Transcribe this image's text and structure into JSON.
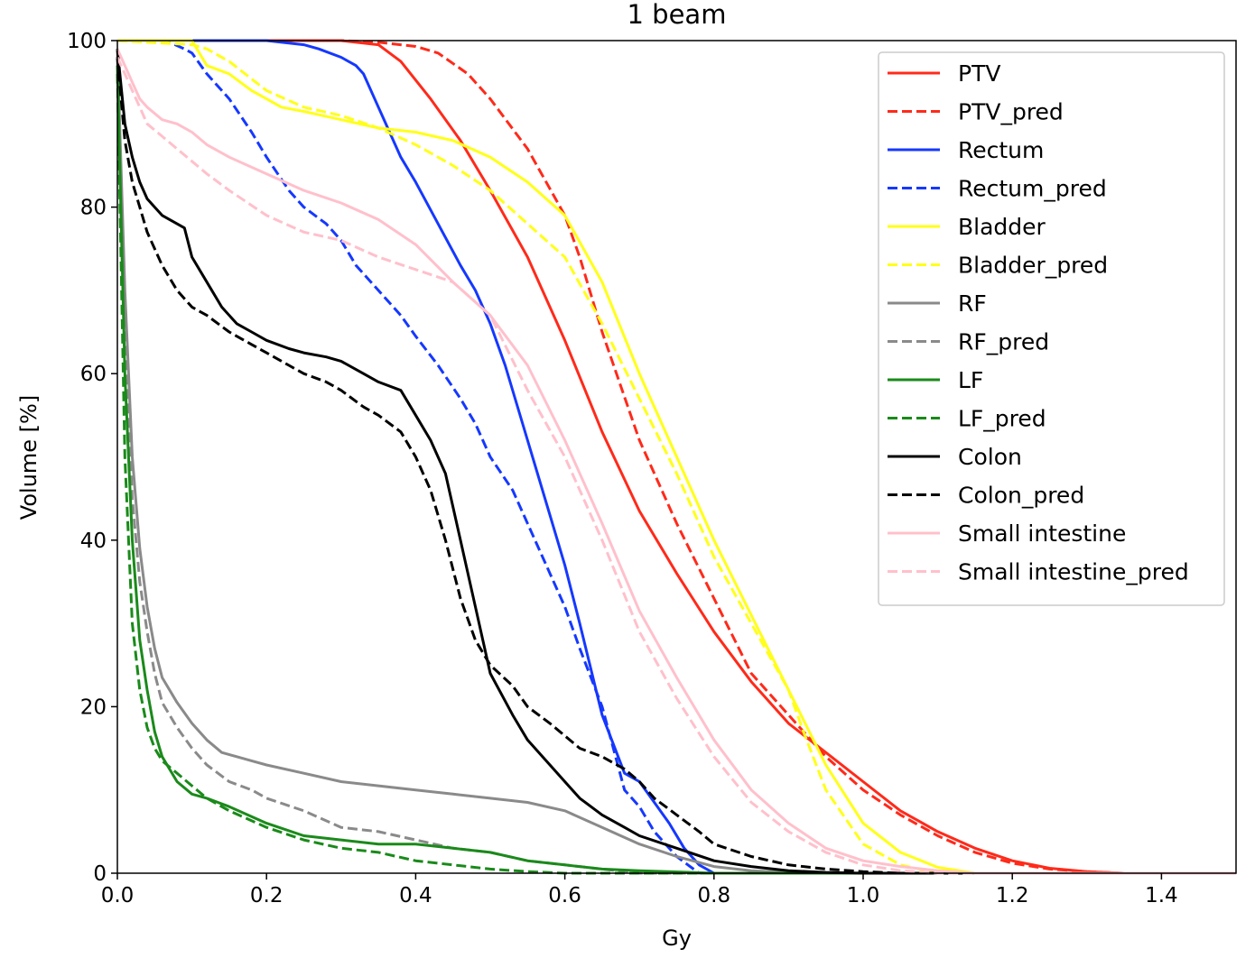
{
  "chart_data": {
    "type": "line",
    "title": "1 beam",
    "xlabel": "Gy",
    "ylabel": "Volume [%]",
    "xlim": [
      0.0,
      1.5
    ],
    "ylim": [
      0,
      100
    ],
    "xticks": [
      0.0,
      0.2,
      0.4,
      0.6,
      0.8,
      1.0,
      1.2,
      1.4
    ],
    "xtick_labels": [
      "0.0",
      "0.2",
      "0.4",
      "0.6",
      "0.8",
      "1.0",
      "1.2",
      "1.4"
    ],
    "yticks": [
      0,
      20,
      40,
      60,
      80,
      100
    ],
    "ytick_labels": [
      "0",
      "20",
      "40",
      "60",
      "80",
      "100"
    ],
    "grid": false,
    "legend_position": "top-right",
    "series": [
      {
        "name": "PTV",
        "color": "#ff2a1a",
        "style": "solid",
        "x": [
          0,
          0.2,
          0.3,
          0.35,
          0.38,
          0.42,
          0.46,
          0.5,
          0.55,
          0.6,
          0.65,
          0.7,
          0.75,
          0.8,
          0.85,
          0.9,
          0.95,
          1.0,
          1.05,
          1.1,
          1.15,
          1.2,
          1.25,
          1.3,
          1.35,
          1.5
        ],
        "y": [
          100,
          100,
          100,
          99.5,
          97.5,
          93,
          88,
          82,
          74,
          64,
          53,
          43.5,
          36,
          29,
          23,
          18,
          14.5,
          11,
          7.5,
          5,
          3,
          1.5,
          0.6,
          0.2,
          0,
          0
        ]
      },
      {
        "name": "PTV_pred",
        "color": "#ff2a1a",
        "style": "dashed",
        "x": [
          0,
          0.3,
          0.35,
          0.4,
          0.43,
          0.47,
          0.5,
          0.55,
          0.6,
          0.62,
          0.65,
          0.7,
          0.75,
          0.8,
          0.85,
          0.9,
          0.95,
          1.0,
          1.05,
          1.1,
          1.15,
          1.2,
          1.25,
          1.3,
          1.35,
          1.5
        ],
        "y": [
          100,
          100,
          99.8,
          99.3,
          98.5,
          96,
          93,
          87,
          79,
          74,
          65,
          52,
          42,
          33,
          24,
          19,
          14,
          10,
          7,
          4.5,
          2.5,
          1.2,
          0.5,
          0.2,
          0,
          0
        ]
      },
      {
        "name": "Rectum",
        "color": "#1538ff",
        "style": "solid",
        "x": [
          0,
          0.2,
          0.23,
          0.25,
          0.27,
          0.3,
          0.32,
          0.33,
          0.35,
          0.38,
          0.4,
          0.43,
          0.46,
          0.48,
          0.5,
          0.52,
          0.55,
          0.58,
          0.6,
          0.62,
          0.65,
          0.68,
          0.7,
          0.72,
          0.74,
          0.76,
          0.78,
          0.8,
          1.5
        ],
        "y": [
          100,
          100,
          99.7,
          99.5,
          99,
          98,
          97,
          96,
          92,
          86,
          83,
          78,
          73,
          70,
          66,
          61,
          52,
          43,
          37,
          30,
          19,
          12,
          11,
          8.5,
          6,
          3,
          1,
          0,
          0
        ]
      },
      {
        "name": "Rectum_pred",
        "color": "#1538ff",
        "style": "dashed",
        "x": [
          0,
          0.07,
          0.09,
          0.1,
          0.12,
          0.15,
          0.18,
          0.2,
          0.23,
          0.25,
          0.28,
          0.3,
          0.32,
          0.35,
          0.38,
          0.4,
          0.43,
          0.46,
          0.48,
          0.5,
          0.53,
          0.55,
          0.58,
          0.6,
          0.62,
          0.65,
          0.68,
          0.7,
          0.72,
          0.75,
          0.78,
          1.5
        ],
        "y": [
          100,
          99.8,
          99,
          98.5,
          96,
          93,
          89,
          86,
          82,
          80,
          78,
          76,
          73,
          70,
          67,
          64.5,
          61,
          57,
          54,
          50,
          46,
          42,
          36,
          32,
          27,
          20,
          10,
          8,
          5,
          2,
          0,
          0
        ]
      },
      {
        "name": "Bladder",
        "color": "#ffff1a",
        "style": "solid",
        "x": [
          0,
          0.1,
          0.12,
          0.15,
          0.18,
          0.2,
          0.22,
          0.25,
          0.3,
          0.35,
          0.4,
          0.45,
          0.5,
          0.55,
          0.6,
          0.65,
          0.7,
          0.75,
          0.8,
          0.85,
          0.9,
          0.95,
          1.0,
          1.05,
          1.1,
          1.15,
          1.5
        ],
        "y": [
          100,
          100,
          97,
          96,
          94,
          93,
          92,
          91.5,
          90.5,
          89.5,
          89,
          88,
          86,
          83,
          79,
          71,
          60,
          50,
          40,
          31,
          22,
          13,
          6,
          2.5,
          0.7,
          0,
          0
        ]
      },
      {
        "name": "Bladder_pred",
        "color": "#ffff1a",
        "style": "dashed",
        "x": [
          0,
          0.1,
          0.12,
          0.15,
          0.2,
          0.25,
          0.3,
          0.35,
          0.4,
          0.45,
          0.5,
          0.55,
          0.6,
          0.65,
          0.7,
          0.75,
          0.8,
          0.85,
          0.9,
          0.92,
          0.95,
          1.0,
          1.05,
          1.1,
          1.5
        ],
        "y": [
          100,
          99.5,
          99,
          97.5,
          94,
          92,
          91,
          89.5,
          87.5,
          85,
          82,
          78,
          74,
          66,
          57,
          48,
          38,
          30,
          22,
          17,
          10,
          3.5,
          1,
          0,
          0
        ]
      },
      {
        "name": "RF",
        "color": "#8a8a8a",
        "style": "solid",
        "x": [
          0,
          0.01,
          0.02,
          0.03,
          0.04,
          0.05,
          0.06,
          0.08,
          0.1,
          0.12,
          0.14,
          0.16,
          0.18,
          0.2,
          0.25,
          0.3,
          0.35,
          0.4,
          0.45,
          0.5,
          0.55,
          0.6,
          0.65,
          0.7,
          0.75,
          0.8,
          0.85,
          0.9,
          0.95,
          1.0,
          1.5
        ],
        "y": [
          99,
          70,
          50,
          39,
          32,
          27,
          23.5,
          20.5,
          18,
          16,
          14.5,
          14,
          13.5,
          13,
          12,
          11,
          10.5,
          10,
          9.5,
          9,
          8.5,
          7.5,
          5.5,
          3.5,
          2,
          0.8,
          0.3,
          0.1,
          0,
          0,
          0
        ]
      },
      {
        "name": "RF_pred",
        "color": "#8a8a8a",
        "style": "dashed",
        "x": [
          0,
          0.01,
          0.02,
          0.03,
          0.04,
          0.05,
          0.06,
          0.08,
          0.1,
          0.12,
          0.15,
          0.18,
          0.2,
          0.25,
          0.3,
          0.35,
          0.4,
          0.45,
          0.5,
          0.55,
          0.6,
          0.65,
          0.7,
          0.8,
          1.5
        ],
        "y": [
          98,
          65,
          45,
          35,
          29,
          24,
          20.5,
          17.5,
          15,
          13,
          11,
          10,
          9,
          7.5,
          5.5,
          5,
          4,
          3,
          2.5,
          1.5,
          1,
          0.5,
          0,
          0,
          0
        ]
      },
      {
        "name": "LF",
        "color": "#1a8a1a",
        "style": "solid",
        "x": [
          0,
          0.01,
          0.02,
          0.03,
          0.04,
          0.05,
          0.06,
          0.08,
          0.1,
          0.12,
          0.15,
          0.2,
          0.25,
          0.3,
          0.35,
          0.4,
          0.45,
          0.5,
          0.55,
          0.6,
          0.65,
          0.7,
          0.8,
          1.5
        ],
        "y": [
          97,
          60,
          40,
          28,
          22,
          17,
          14,
          11,
          9.5,
          9,
          8,
          6,
          4.5,
          4,
          3.5,
          3.5,
          3,
          2.5,
          1.5,
          1,
          0.5,
          0.3,
          0,
          0
        ]
      },
      {
        "name": "LF_pred",
        "color": "#1a8a1a",
        "style": "dashed",
        "x": [
          0,
          0.01,
          0.02,
          0.03,
          0.04,
          0.05,
          0.06,
          0.08,
          0.1,
          0.12,
          0.15,
          0.2,
          0.25,
          0.3,
          0.35,
          0.4,
          0.45,
          0.5,
          0.55,
          0.6,
          1.5
        ],
        "y": [
          96,
          50,
          30,
          22,
          17.5,
          15,
          13.5,
          12,
          10.5,
          9,
          7.5,
          5.5,
          4,
          3,
          2.5,
          1.5,
          1,
          0.5,
          0.2,
          0,
          0
        ]
      },
      {
        "name": "Colon",
        "color": "#000000",
        "style": "solid",
        "x": [
          0,
          0.01,
          0.02,
          0.03,
          0.04,
          0.05,
          0.06,
          0.08,
          0.09,
          0.1,
          0.12,
          0.14,
          0.16,
          0.18,
          0.2,
          0.23,
          0.25,
          0.28,
          0.3,
          0.33,
          0.35,
          0.38,
          0.4,
          0.42,
          0.44,
          0.46,
          0.48,
          0.5,
          0.53,
          0.55,
          0.58,
          0.6,
          0.62,
          0.65,
          0.68,
          0.7,
          0.75,
          0.8,
          0.85,
          0.9,
          0.95,
          1.0,
          1.5
        ],
        "y": [
          99,
          90,
          86,
          83,
          81,
          80,
          79,
          78,
          77.5,
          74,
          71,
          68,
          66,
          65,
          64,
          63,
          62.5,
          62,
          61.5,
          60,
          59,
          58,
          55,
          52,
          48,
          40,
          32,
          24,
          19,
          16,
          13,
          11,
          9,
          7,
          5.5,
          4.5,
          3,
          1.5,
          0.8,
          0.3,
          0.1,
          0,
          0
        ]
      },
      {
        "name": "Colon_pred",
        "color": "#000000",
        "style": "dashed",
        "x": [
          0,
          0.01,
          0.02,
          0.03,
          0.04,
          0.05,
          0.06,
          0.08,
          0.1,
          0.12,
          0.15,
          0.18,
          0.2,
          0.23,
          0.25,
          0.28,
          0.3,
          0.33,
          0.35,
          0.38,
          0.4,
          0.42,
          0.44,
          0.46,
          0.48,
          0.5,
          0.53,
          0.55,
          0.58,
          0.6,
          0.62,
          0.65,
          0.68,
          0.7,
          0.72,
          0.75,
          0.78,
          0.8,
          0.85,
          0.9,
          0.95,
          1.0,
          1.05,
          1.5
        ],
        "y": [
          98,
          88,
          83,
          80,
          77,
          75,
          73,
          70,
          68,
          67,
          65,
          63.5,
          62.5,
          61,
          60,
          59,
          58,
          56,
          55,
          53,
          50,
          46,
          40,
          33,
          28,
          25,
          22.5,
          20,
          18,
          16.5,
          15,
          14,
          12.5,
          11,
          9,
          7,
          5,
          3.5,
          2,
          1,
          0.5,
          0.2,
          0,
          0
        ]
      },
      {
        "name": "Small intestine",
        "color": "#ffc0cb",
        "style": "solid",
        "x": [
          0,
          0.01,
          0.02,
          0.03,
          0.04,
          0.06,
          0.08,
          0.1,
          0.12,
          0.15,
          0.2,
          0.25,
          0.3,
          0.35,
          0.4,
          0.45,
          0.5,
          0.55,
          0.6,
          0.65,
          0.7,
          0.75,
          0.8,
          0.85,
          0.9,
          0.95,
          1.0,
          1.05,
          1.1,
          1.15,
          1.5
        ],
        "y": [
          99,
          97,
          95,
          93,
          92,
          90.5,
          90,
          89,
          87.5,
          86,
          84,
          82,
          80.5,
          78.5,
          75.5,
          71,
          67,
          61,
          52,
          42,
          31.5,
          23.5,
          16,
          10,
          6,
          3,
          1.5,
          0.8,
          0.3,
          0,
          0
        ]
      },
      {
        "name": "Small intestine_pred",
        "color": "#ffc0cb",
        "style": "dashed",
        "x": [
          0,
          0.01,
          0.02,
          0.03,
          0.04,
          0.06,
          0.08,
          0.1,
          0.12,
          0.15,
          0.2,
          0.25,
          0.3,
          0.35,
          0.4,
          0.45,
          0.5,
          0.55,
          0.6,
          0.65,
          0.7,
          0.75,
          0.8,
          0.85,
          0.9,
          0.95,
          1.0,
          1.05,
          1.1,
          1.5
        ],
        "y": [
          98,
          96,
          94,
          92,
          90,
          88.5,
          87,
          85.5,
          84,
          82,
          79,
          77,
          76,
          74,
          72.5,
          71,
          67,
          58,
          50,
          40,
          29,
          21,
          14,
          8.5,
          5,
          2.5,
          1,
          0.3,
          0,
          0
        ]
      }
    ]
  }
}
